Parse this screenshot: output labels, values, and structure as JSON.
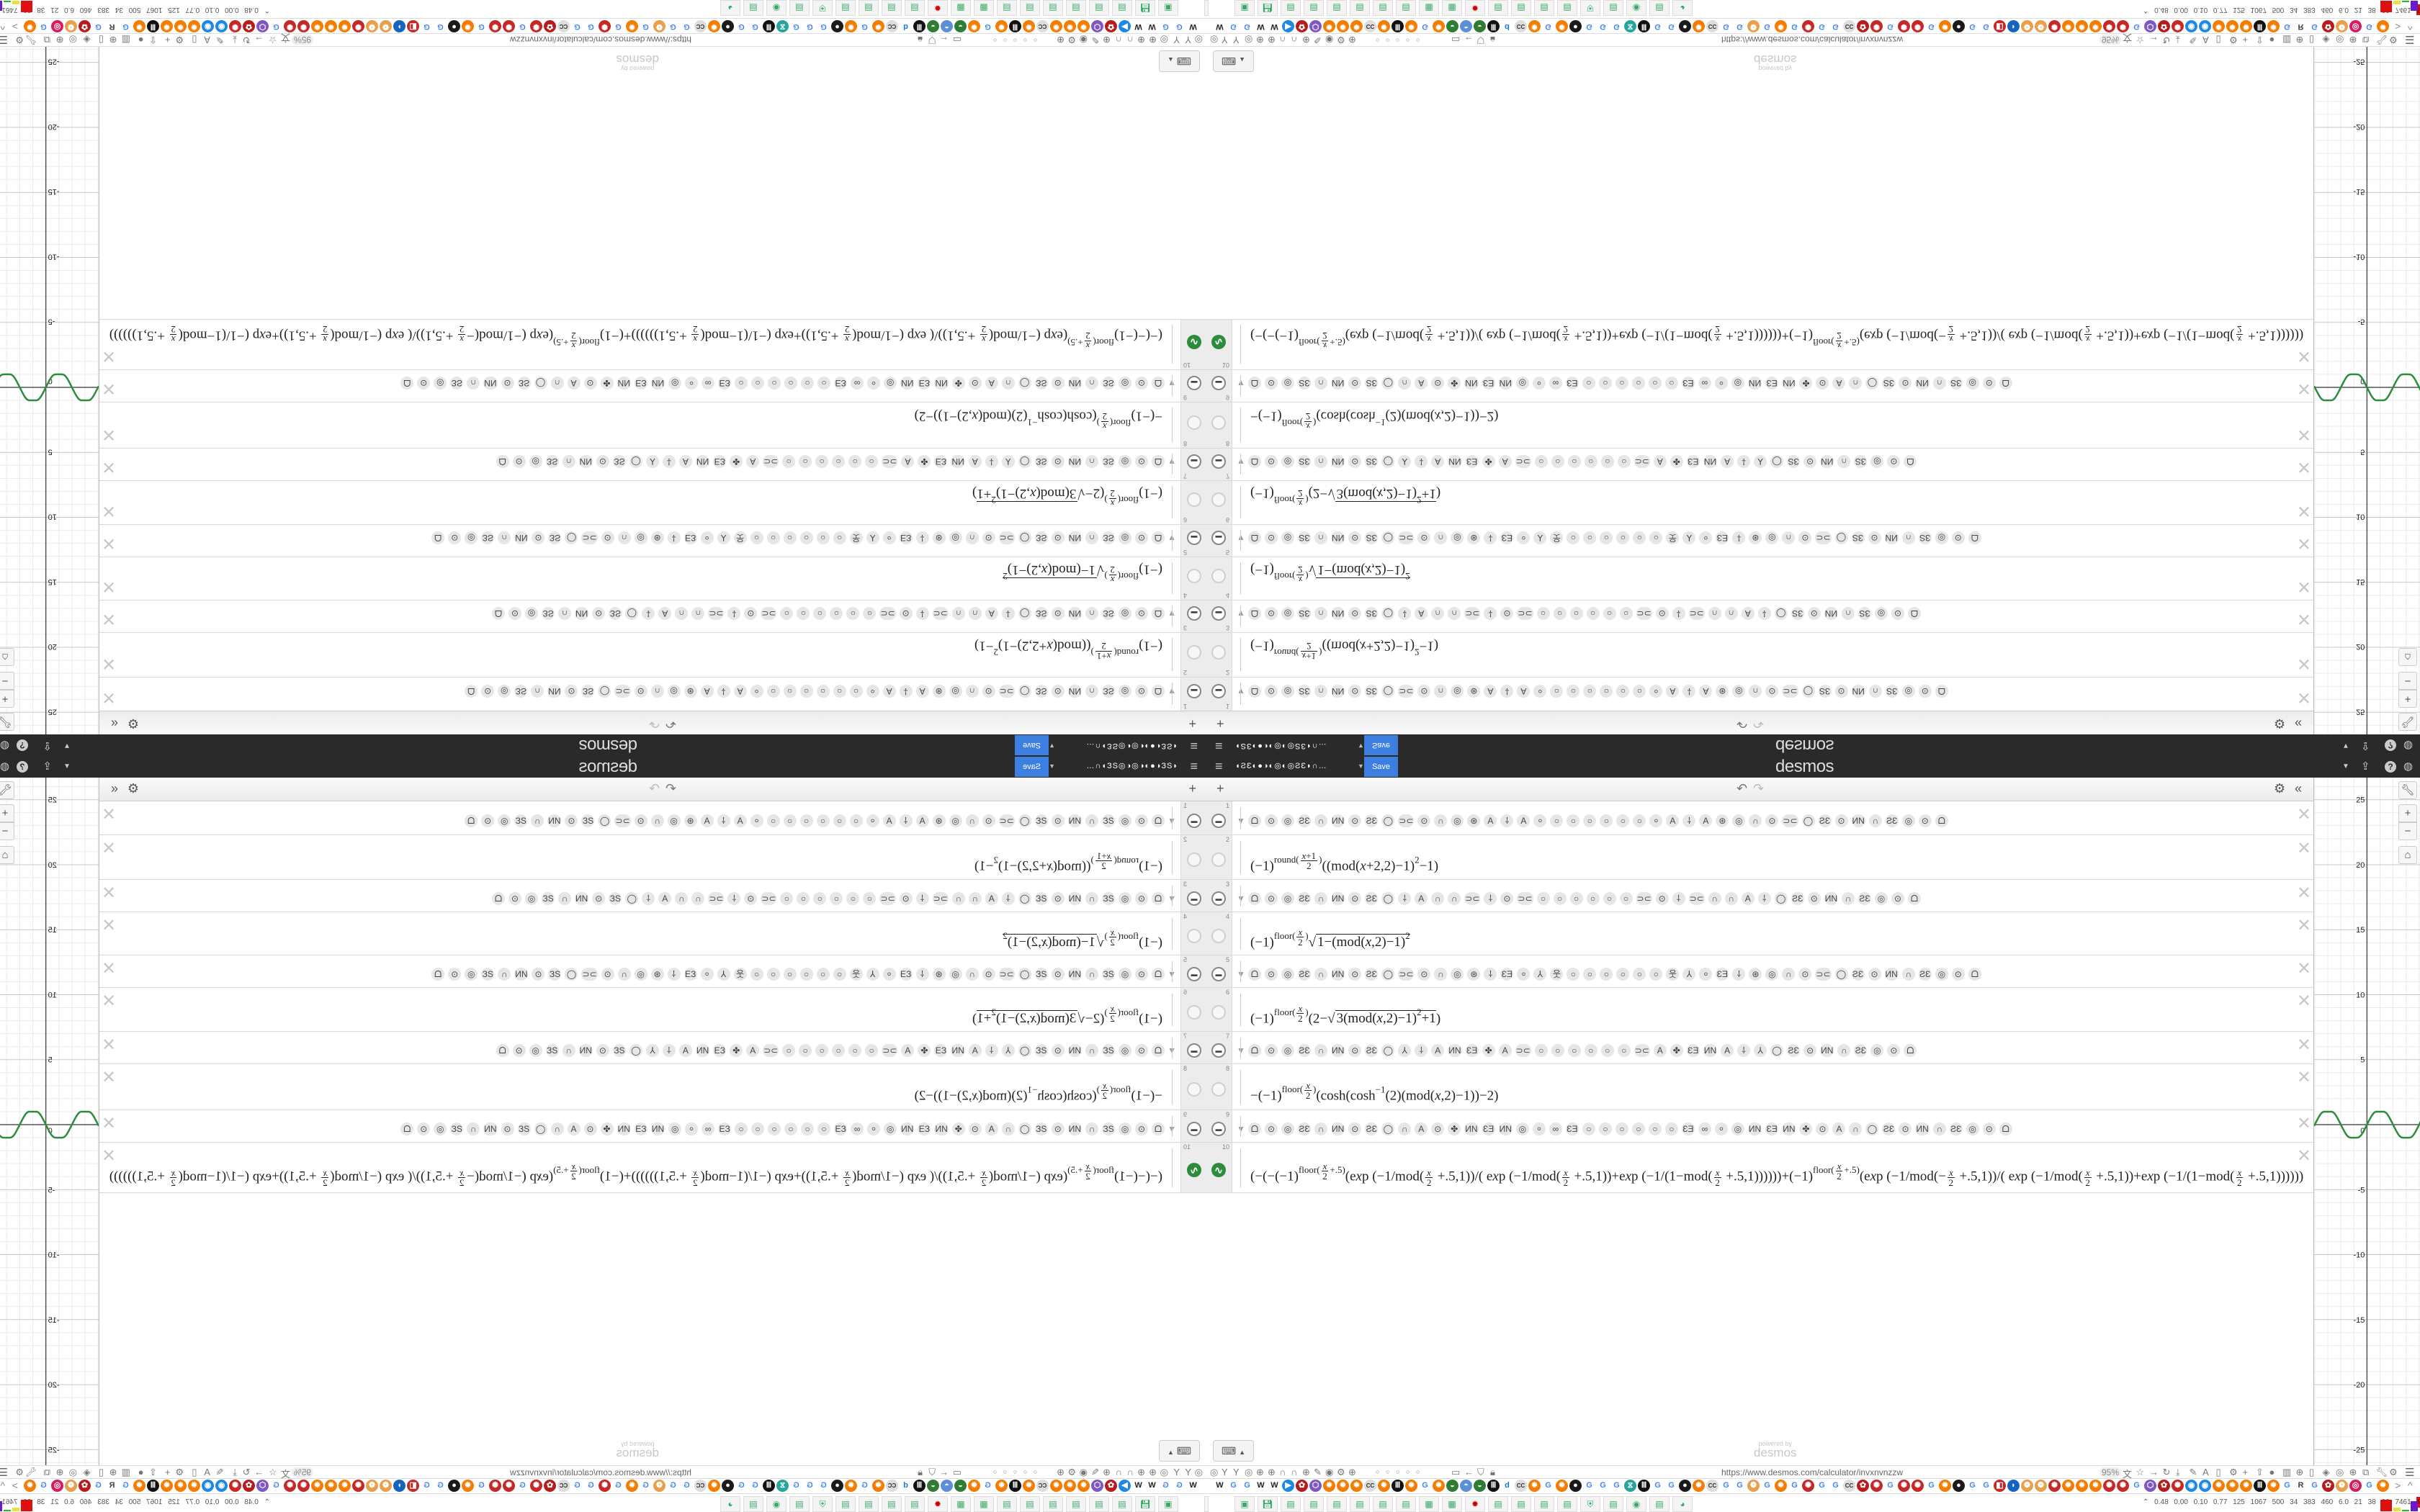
{
  "header": {
    "menu_icon": "hamburger-icon",
    "title_glyphs": "◖ƧƐ◐●◑◐◎◐◎ƧƐ◗∩…",
    "title_caret": "▼",
    "save_label": "Save",
    "logo": "desmos",
    "right_icons": [
      {
        "name": "caret-down-icon",
        "glyph": "▼"
      },
      {
        "name": "share-icon",
        "glyph": "⇪"
      },
      {
        "name": "help-icon",
        "glyph": "?"
      },
      {
        "name": "language-globe-icon",
        "glyph": "◍"
      }
    ]
  },
  "list_toolbar": {
    "add": "+",
    "undo": "↶",
    "redo": "↷",
    "settings": "⚙",
    "collapse": "«"
  },
  "expressions": [
    {
      "num": "1",
      "type": "folder",
      "glyphs": [
        "ᗝ",
        "⊙",
        "◎",
        "ƧƐ",
        "∩",
        "ИN",
        "⊙",
        "ƧƐ",
        "◯",
        "⊃⊂",
        "⊙",
        "∩",
        "◎",
        "⊛",
        "A",
        "⸸",
        "A",
        "⸰",
        "○",
        "○",
        "○",
        "○",
        "○",
        "○",
        "⸰",
        "A",
        "⸸",
        "A",
        "⊛",
        "◎",
        "∩",
        "⊙",
        "⊃⊂",
        "◯",
        "ƧƐ",
        "⊙",
        "ИN",
        "∩",
        "ƧƐ",
        "◎",
        "⊙",
        "ᗝ"
      ]
    },
    {
      "num": "2",
      "type": "expr",
      "latex": "(−1)^{round(\\frac{x+1}{2})}((mod(x+2,2)−1)^{2}−1)"
    },
    {
      "num": "3",
      "type": "folder",
      "glyphs": [
        "ᗝ",
        "⊙",
        "◎",
        "ƧƐ",
        "∩",
        "ИN",
        "⊙",
        "ƧƐ",
        "◯",
        "⸸",
        "A",
        "∩",
        "∩",
        "⊃⊂",
        "⸸",
        "⊙",
        "⊃⊂",
        "○",
        "○",
        "○",
        "○",
        "○",
        "○",
        "⊃⊂",
        "⊙",
        "⸸",
        "⊃⊂",
        "∩",
        "∩",
        "A",
        "⸸",
        "◯",
        "ƧƐ",
        "⊙",
        "ИN",
        "∩",
        "ƧƐ",
        "◎",
        "⊙",
        "ᗝ"
      ]
    },
    {
      "num": "4",
      "type": "expr",
      "latex": "(−1)^{floor(\\frac{x}{2})}\\sqrt{1−(mod(x,2)−1)^{2}}"
    },
    {
      "num": "5",
      "type": "folder",
      "glyphs": [
        "ᗝ",
        "⊙",
        "◎",
        "ƧƐ",
        "∩",
        "ИN",
        "⊙",
        "ƧƐ",
        "◯",
        "⊃⊂",
        "⊙",
        "∩",
        "◎",
        "⊛",
        "⸸",
        "ƐƎ",
        "⸰",
        "⅄",
        "웃",
        "○",
        "○",
        "○",
        "○",
        "○",
        "○",
        "웃",
        "⅄",
        "⸰",
        "ƐƎ",
        "⸸",
        "⊛",
        "◎",
        "∩",
        "⊙",
        "⊃⊂",
        "◯",
        "ƧƐ",
        "⊙",
        "ИN",
        "∩",
        "ƧƐ",
        "◎",
        "⊙",
        "ᗝ"
      ]
    },
    {
      "num": "6",
      "type": "expr",
      "latex": "(−1)^{floor(\\frac{x}{2})}(2−\\sqrt{3(mod(x,2)−1)^{2}+1})"
    },
    {
      "num": "7",
      "type": "folder",
      "glyphs": [
        "ᗝ",
        "⊙",
        "◎",
        "ƧƐ",
        "∩",
        "ИN",
        "⊙",
        "ƧƐ",
        "◯",
        "⅄",
        "⸸",
        "A",
        "ИN",
        "ƐƎ",
        "✤",
        "A",
        "⊃⊂",
        "○",
        "○",
        "○",
        "○",
        "○",
        "○",
        "⊃⊂",
        "A",
        "✤",
        "ƐƎ",
        "ИN",
        "A",
        "⸸",
        "⅄",
        "◯",
        "ƧƐ",
        "⊙",
        "ИN",
        "∩",
        "ƧƐ",
        "◎",
        "⊙",
        "ᗝ"
      ]
    },
    {
      "num": "8",
      "type": "expr",
      "latex": "−(−1)^{floor(\\frac{x}{2})}(cosh(cosh^{−1}(2)(mod(x,2)−1))−2)"
    },
    {
      "num": "9",
      "type": "folder",
      "glyphs": [
        "ᗝ",
        "⊙",
        "◎",
        "ƧƐ",
        "∩",
        "ИN",
        "⊙",
        "ƧƐ",
        "◯",
        "∩",
        "A",
        "⊙",
        "✤",
        "ИN",
        "ƐƎ",
        "ИN",
        "◎",
        "⸰",
        "∞",
        "ƐƎ",
        "○",
        "○",
        "○",
        "○",
        "○",
        "○",
        "ƐƎ",
        "∞",
        "⸰",
        "◎",
        "ИN",
        "ƐƎ",
        "ИN",
        "✤",
        "⊙",
        "A",
        "∩",
        "◯",
        "ƧƐ",
        "⊙",
        "ИN",
        "∩",
        "ƧƐ",
        "◎",
        "⊙",
        "ᗝ"
      ]
    },
    {
      "num": "10",
      "type": "expr",
      "graphed": true,
      "latex": "(−(−(−1)^{floor(\\frac{x}{2}+.5)}(exp (−1/mod(\\frac{x}{2} +.5,1))/( exp (−1/mod(\\frac{x}{2} +.5,1))+exp (−1/(1−mod(\\frac{x}{2} +.5,1))))))+(−1)^{floor(\\frac{x}{2}+.5)}(exp (−1/mod(−\\frac{x}{2} +.5,1))/( exp (−1/mod(\\frac{x}{2} +.5,1))+exp (−1/(1−mod(\\frac{x}{2} +.5,1))))))"
    }
  ],
  "delete_glyph": "✕",
  "graph": {
    "xmin": -4.05,
    "xmax": 4.12,
    "ymin": -26.2,
    "ymax": 26.7,
    "grid": true,
    "minor_step": 1,
    "major_step": 5,
    "y_tick_labels": [
      "25",
      "20",
      "15",
      "10",
      "5",
      "0",
      "-5",
      "-10",
      "-15",
      "-20",
      "-25"
    ],
    "origin_label": "0",
    "curve_color": "#2d8c3c",
    "zoom_buttons": [
      {
        "name": "graph-settings-wrench-icon",
        "glyph": "🔧︎"
      },
      {
        "name": "zoom-in-button",
        "glyph": "+"
      },
      {
        "name": "zoom-out-button",
        "glyph": "−"
      },
      {
        "name": "default-zoom-home-icon",
        "glyph": "⌂"
      }
    ]
  },
  "keypad": {
    "icon": "keyboard-icon",
    "glyph": "⌨",
    "caret": "▲"
  },
  "powered_by": {
    "small": "powered by",
    "logo": "desmos"
  },
  "browser": {
    "left_tools": [
      "◎",
      "Y",
      "Y",
      "◎",
      "⊕",
      "⊕",
      "∩",
      "∩",
      "⊕",
      "✎",
      "◉",
      "⚙",
      "⊕"
    ],
    "page_dots": [
      "○",
      "○",
      "○",
      "○",
      "○"
    ],
    "nav_icons": [
      {
        "name": "folder-icon",
        "glyph": "▭"
      },
      {
        "name": "back-icon",
        "glyph": "←"
      },
      {
        "name": "shield-icon",
        "glyph": "⛉"
      },
      {
        "name": "lock-icon",
        "glyph": "🔒︎"
      }
    ],
    "url": "https://www.desmos.com/calculator/invxnvnzzw",
    "zoom_level": "95%",
    "right_tools": [
      "文",
      "☆",
      "→",
      "↻",
      "⤓",
      "✎",
      "A",
      "▯",
      "⚙",
      "+",
      "⇧",
      "●",
      "▥",
      "⊕",
      "▯",
      "◈",
      "◎",
      "⊕",
      "⧉",
      "🔧︎",
      "⚙"
    ],
    "menu_glyph": "☰",
    "bookmarks": [
      "W",
      "G",
      "G",
      "W",
      "W",
      "▶",
      "✿",
      "⬡",
      "✹",
      "✹",
      "✹",
      "CC",
      "✹",
      "Ⅲ",
      "✹",
      "G",
      "✹",
      "◒",
      "◓",
      "◒",
      "Ⅲ",
      "d",
      "CC",
      "✹",
      "G",
      "✹",
      "●",
      "G",
      "G",
      "G",
      "⧖",
      "Ⅲ",
      "G",
      "G",
      "●",
      "✹",
      "CC",
      "G",
      "G",
      "❁",
      "G",
      "✹",
      "G",
      "✺",
      "G",
      "G",
      "CC",
      "✿",
      "✺",
      "G",
      "✺",
      "✺",
      "G",
      "✹",
      "●",
      "G",
      "G",
      "◧",
      "◗",
      "❁",
      "❁",
      "✺",
      "✹",
      "✹",
      "✹",
      "✺",
      "✺",
      "G",
      "⬡",
      "✿",
      "✺",
      "◉",
      "◉",
      "✹",
      "✹",
      "✹",
      "Ⅲ",
      "✹",
      "G",
      "R",
      "G",
      "✿",
      "❁",
      "◎",
      "G",
      "✹"
    ],
    "bookmark_nav": [
      ">",
      "^"
    ],
    "glyph_colors": {
      "G": "#4285f4",
      "W": "#222222",
      "✹": "#f57c00",
      "✺": "#c62828",
      "✿": "#b71c1c",
      "❁": "#e8a04c",
      "CC": "#666666",
      "Ⅲ": "#111111",
      "●": "#1a1a1a",
      "d": "#1976d2",
      "◉": "#1e88e5",
      "⬡": "#7e57c2",
      "R": "#444444",
      "◎": "#d81b60",
      "◒": "#2e7d32",
      "◓": "#5c8fd6",
      "⧖": "#26a69a",
      "◧": "#c62828",
      "◗": "#1565c0",
      "▶": "#1e88e5"
    },
    "taskbar": [
      "▣",
      "",
      "▣",
      "💾︎",
      "▤",
      "▤",
      "▤",
      "▤",
      "▤",
      "▤",
      "▦",
      "▦",
      "✹",
      "▤",
      "▤",
      "▤",
      "▤",
      "⛨",
      "▤",
      "◉",
      "▤",
      "◕"
    ],
    "stats": [
      "0.48",
      "0.00",
      "0.10",
      "0.77",
      "125",
      "1067",
      "500",
      "34",
      "383",
      "460",
      "6.0",
      "21",
      "38",
      "36",
      "7461",
      "9030"
    ],
    "stats_expand": "⌃"
  }
}
